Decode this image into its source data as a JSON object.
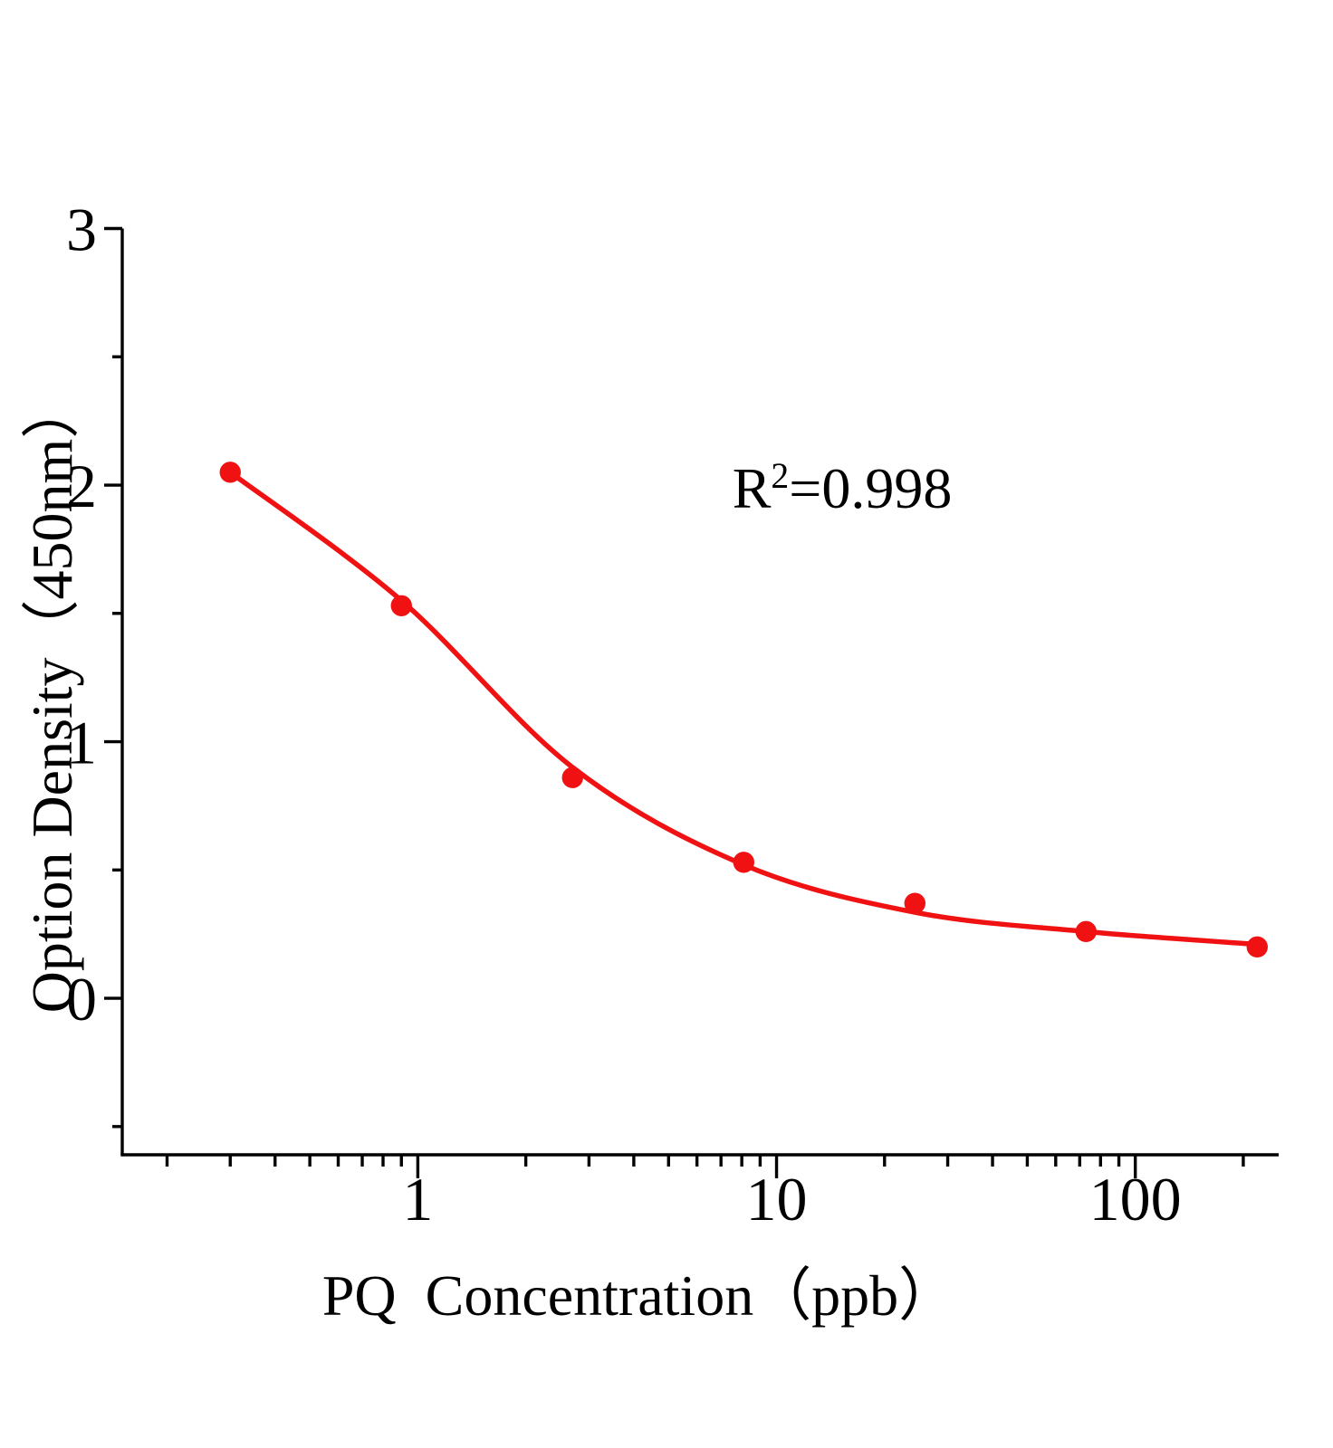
{
  "chart_data": {
    "type": "scatter",
    "title": "",
    "xlabel": "PQ  Concentration（ppb）",
    "ylabel": "Option Density（450nm）",
    "annotation": {
      "base": "R",
      "exponent": "2",
      "value": "=0.998",
      "r_squared": 0.998
    },
    "x_axis": {
      "scale": "log",
      "min": 0.15,
      "max": 251,
      "major_ticks": [
        1,
        10,
        100
      ],
      "major_tick_labels": [
        "1",
        "10",
        "100"
      ]
    },
    "y_axis": {
      "scale": "linear",
      "min": -0.61,
      "max": 3,
      "major_ticks": [
        0,
        1,
        2,
        3
      ],
      "major_tick_labels": [
        "0",
        "1",
        "2",
        "3"
      ],
      "minor_ticks": [
        -0.5,
        0.5,
        1.5,
        2.5
      ]
    },
    "series": [
      {
        "marker": "circle",
        "color": "#f01212",
        "x": [
          0.3,
          0.9,
          2.7,
          8.1,
          24.3,
          72.9,
          218.7
        ],
        "y": [
          2.05,
          1.53,
          0.86,
          0.53,
          0.37,
          0.26,
          0.2
        ],
        "fit_curve_y": [
          2.05,
          1.55,
          0.9,
          0.52,
          0.335,
          0.26,
          0.21
        ]
      }
    ],
    "colors": {
      "axis": "#000000",
      "text": "#000000",
      "series": "#f01212"
    },
    "grid": false,
    "legend": "none"
  }
}
